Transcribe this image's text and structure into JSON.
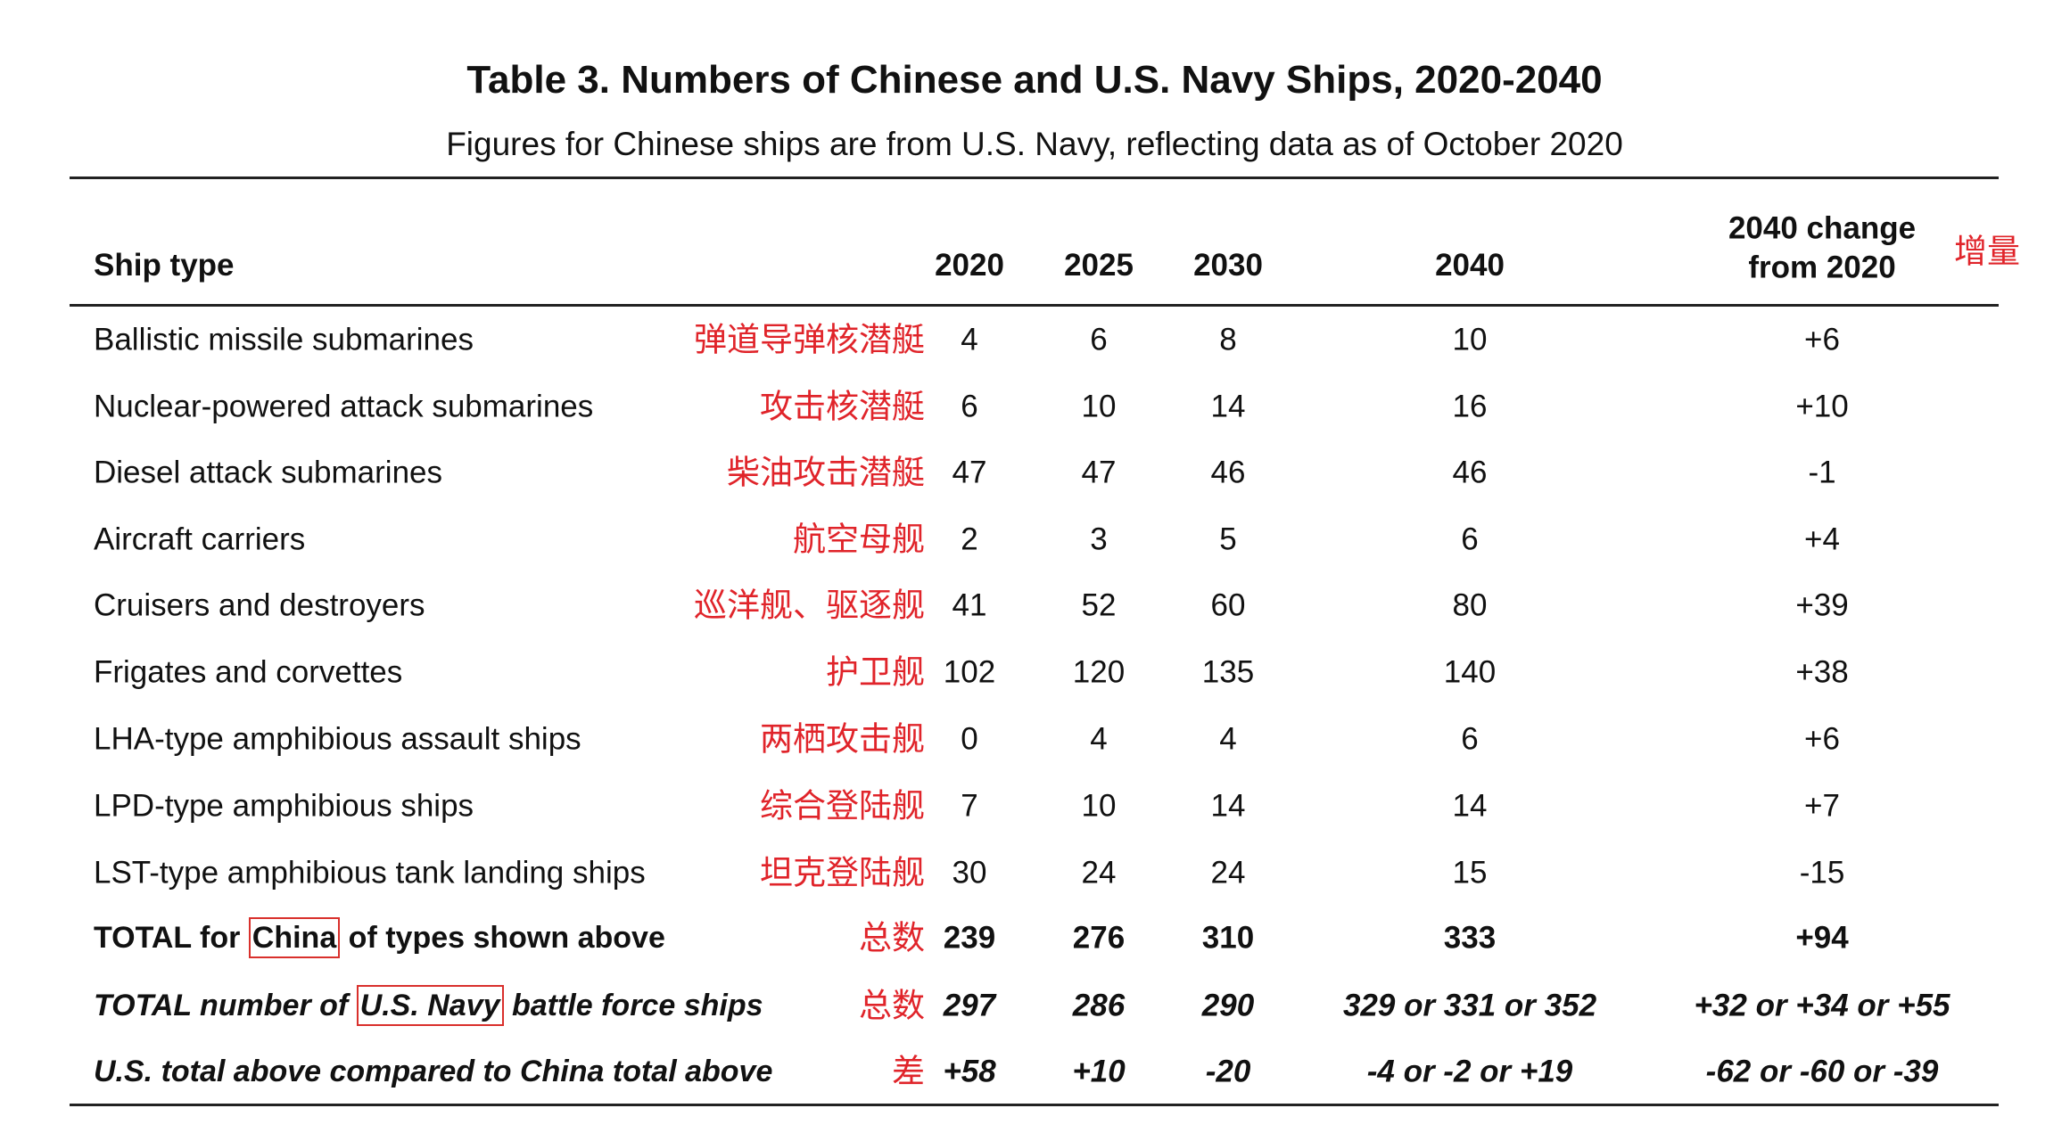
{
  "header": {
    "title": "Table 3. Numbers of Chinese and U.S. Navy Ships, 2020-2040",
    "subtitle": "Figures for Chinese ships are from U.S. Navy, reflecting data as of October 2020"
  },
  "table": {
    "columns": [
      "Ship type",
      "2020",
      "2025",
      "2030",
      "2040",
      [
        "2040 change",
        "from 2020"
      ]
    ],
    "column_note": "增量",
    "rows": [
      {
        "label": "Ballistic missile submarines",
        "note": "弹道导弹核潜艇",
        "values": [
          4,
          6,
          8,
          10,
          "+6"
        ]
      },
      {
        "label": "Nuclear-powered attack submarines",
        "note": "攻击核潜艇",
        "values": [
          6,
          10,
          14,
          16,
          "+10"
        ]
      },
      {
        "label": "Diesel attack submarines",
        "note": "柴油攻击潜艇",
        "values": [
          47,
          47,
          46,
          46,
          "-1"
        ]
      },
      {
        "label": "Aircraft carriers",
        "note": "航空母舰",
        "values": [
          2,
          3,
          5,
          6,
          "+4"
        ]
      },
      {
        "label": "Cruisers and destroyers",
        "note": "巡洋舰、驱逐舰",
        "values": [
          41,
          52,
          60,
          80,
          "+39"
        ]
      },
      {
        "label": "Frigates and corvettes",
        "note": "护卫舰",
        "values": [
          102,
          120,
          135,
          140,
          "+38"
        ]
      },
      {
        "label": "LHA-type amphibious assault ships",
        "note": "两栖攻击舰",
        "values": [
          0,
          4,
          4,
          6,
          "+6"
        ]
      },
      {
        "label": "LPD-type amphibious ships",
        "note": "综合登陆舰",
        "values": [
          7,
          10,
          14,
          14,
          "+7"
        ]
      },
      {
        "label": "LST-type amphibious tank landing ships",
        "note": "坦克登陆舰",
        "values": [
          30,
          24,
          24,
          15,
          "-15"
        ]
      }
    ],
    "totals": [
      {
        "label": [
          "TOTAL for ",
          "China",
          " of types shown above"
        ],
        "note": "总数",
        "values": [
          239,
          276,
          310,
          333,
          "+94"
        ]
      },
      {
        "label": [
          "TOTAL number of ",
          "U.S. Navy",
          " battle force ships"
        ],
        "note": "总数",
        "values": [
          297,
          286,
          290,
          "329 or 331 or 352",
          "+32 or +34 or +55"
        ]
      },
      {
        "label": [
          "U.S. total above compared to China total above"
        ],
        "note": "差",
        "values": [
          "+58",
          "+10",
          "-20",
          "-4 or -2 or +19",
          "-62 or -60 or -39"
        ]
      }
    ]
  }
}
